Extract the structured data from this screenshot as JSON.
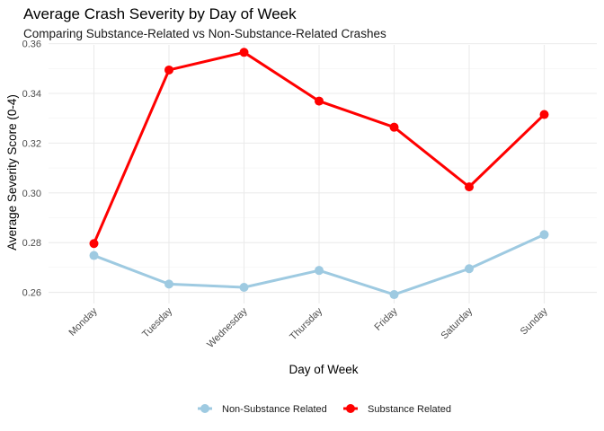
{
  "chart_data": {
    "type": "line",
    "title": "Average Crash Severity by Day of Week",
    "subtitle": "Comparing Substance-Related vs Non-Substance-Related Crashes",
    "xlabel": "Day of Week",
    "ylabel": "Average Severity Score (0-4)",
    "categories": [
      "Monday",
      "Tuesday",
      "Wednesday",
      "Thursday",
      "Friday",
      "Saturday",
      "Sunday"
    ],
    "ylim": [
      0.2555,
      0.3595
    ],
    "yticks": [
      0.26,
      0.28,
      0.3,
      0.32,
      0.34,
      0.36
    ],
    "ytick_labels": [
      "0.26",
      "0.28",
      "0.30",
      "0.32",
      "0.34",
      "0.36"
    ],
    "grid": true,
    "legend_position": "bottom",
    "series": [
      {
        "name": "Non-Substance Related",
        "color": "#9ecae1",
        "values": [
          0.2748,
          0.2633,
          0.262,
          0.2688,
          0.2591,
          0.2695,
          0.2832
        ]
      },
      {
        "name": "Substance Related",
        "color": "#ff0000",
        "values": [
          0.2796,
          0.3494,
          0.3565,
          0.3369,
          0.3264,
          0.3024,
          0.3315
        ]
      }
    ]
  }
}
